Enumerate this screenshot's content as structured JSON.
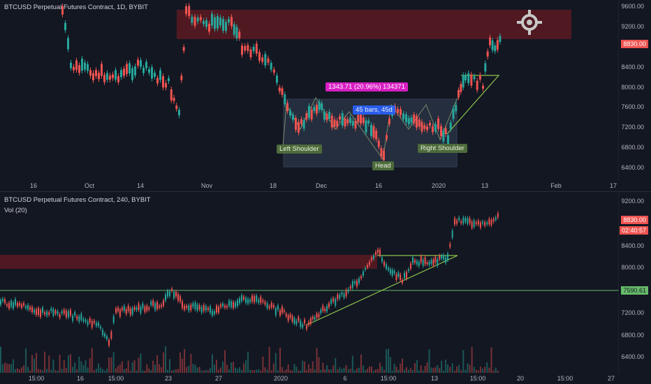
{
  "top_chart": {
    "title": "BTCUSD Perpetual Futures Contract, 1D, BYBIT",
    "price_ticks": [
      "9600.00",
      "9200.00",
      "8800.00",
      "8400.00",
      "8000.00",
      "7600.00",
      "7200.00",
      "6800.00",
      "6400.00"
    ],
    "time_ticks": [
      "16",
      "Oct",
      "14",
      "Nov",
      "18",
      "Dec",
      "16",
      "2020",
      "13",
      "Feb",
      "17"
    ],
    "last_price_badge": "8830.00",
    "pattern_labels": {
      "left_shoulder": "Left Shoulder",
      "head": "Head",
      "right_shoulder": "Right Shoulder"
    },
    "measure_label": "1343.71 (20.96%) 134371",
    "bars_label": "45 bars, 45d",
    "icon": "crosshair-target-icon"
  },
  "bottom_chart": {
    "title": "BTCUSD Perpetual Futures Contract, 240, BYBIT",
    "volume_label": "Vol (20)",
    "price_ticks": [
      "9200.00",
      "8800.00",
      "8400.00",
      "8000.00",
      "7600.00",
      "7200.00",
      "6800.00",
      "6400.00"
    ],
    "time_ticks": [
      "15:00",
      "16",
      "15:00",
      "23",
      "27",
      "2020",
      "6",
      "15:00",
      "13",
      "15:00",
      "20",
      "15:00",
      "27"
    ],
    "last_price_badge": "8830.00",
    "countdown_badge": "02:40:57",
    "line_badge": "7590.61"
  },
  "colors": {
    "background": "#131722",
    "up": "#26a69a",
    "down": "#ef5350",
    "zone": "#5c1a22",
    "trend": "#8bc34a",
    "badge_red": "#ef5350",
    "line_badge": "#66bb6a"
  }
}
